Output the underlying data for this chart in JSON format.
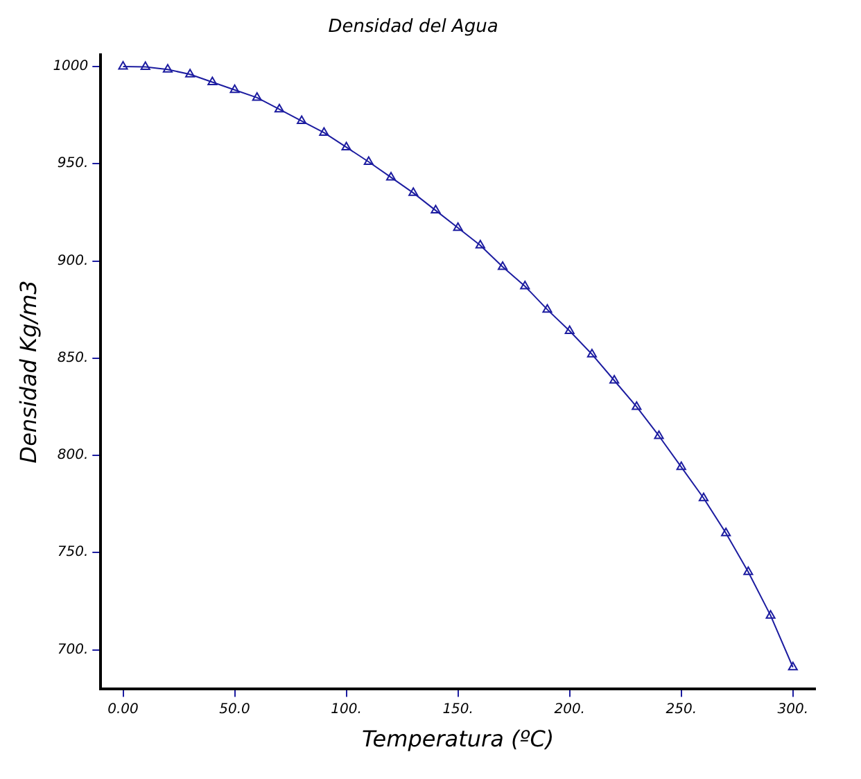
{
  "chart_data": {
    "type": "line",
    "title": "Densidad del Agua",
    "xlabel": "Temperatura (ºC)",
    "ylabel": "Densidad Kg/m3",
    "x": [
      0,
      10,
      20,
      30,
      40,
      50,
      60,
      70,
      80,
      90,
      100,
      110,
      120,
      130,
      140,
      150,
      160,
      170,
      180,
      190,
      200,
      210,
      220,
      230,
      240,
      250,
      260,
      270,
      280,
      290,
      300
    ],
    "series": [
      {
        "color": "#1c1ca0",
        "values": [
          1000,
          999.8,
          998.5,
          996,
          992,
          988,
          984,
          978,
          972,
          966,
          958.5,
          951,
          943,
          935,
          926,
          917,
          908,
          897,
          887,
          875,
          864,
          852,
          838.5,
          825,
          810,
          794,
          778,
          760,
          740,
          717.6,
          691
        ]
      }
    ],
    "xlim": [
      -10,
      310
    ],
    "ylim": [
      680,
      1006
    ],
    "xticks": [
      {
        "value": 0,
        "label": "0.00"
      },
      {
        "value": 50,
        "label": "50.0"
      },
      {
        "value": 100,
        "label": "100."
      },
      {
        "value": 150,
        "label": "150."
      },
      {
        "value": 200,
        "label": "200."
      },
      {
        "value": 250,
        "label": "250."
      },
      {
        "value": 300,
        "label": "300."
      }
    ],
    "yticks": [
      {
        "value": 700,
        "label": "700."
      },
      {
        "value": 750,
        "label": "750."
      },
      {
        "value": 800,
        "label": "800."
      },
      {
        "value": 850,
        "label": "850."
      },
      {
        "value": 900,
        "label": "900."
      },
      {
        "value": 950,
        "label": "950."
      },
      1000
    ],
    "grid": false,
    "legend": false,
    "marker": "triangle",
    "line_style": "solid"
  }
}
